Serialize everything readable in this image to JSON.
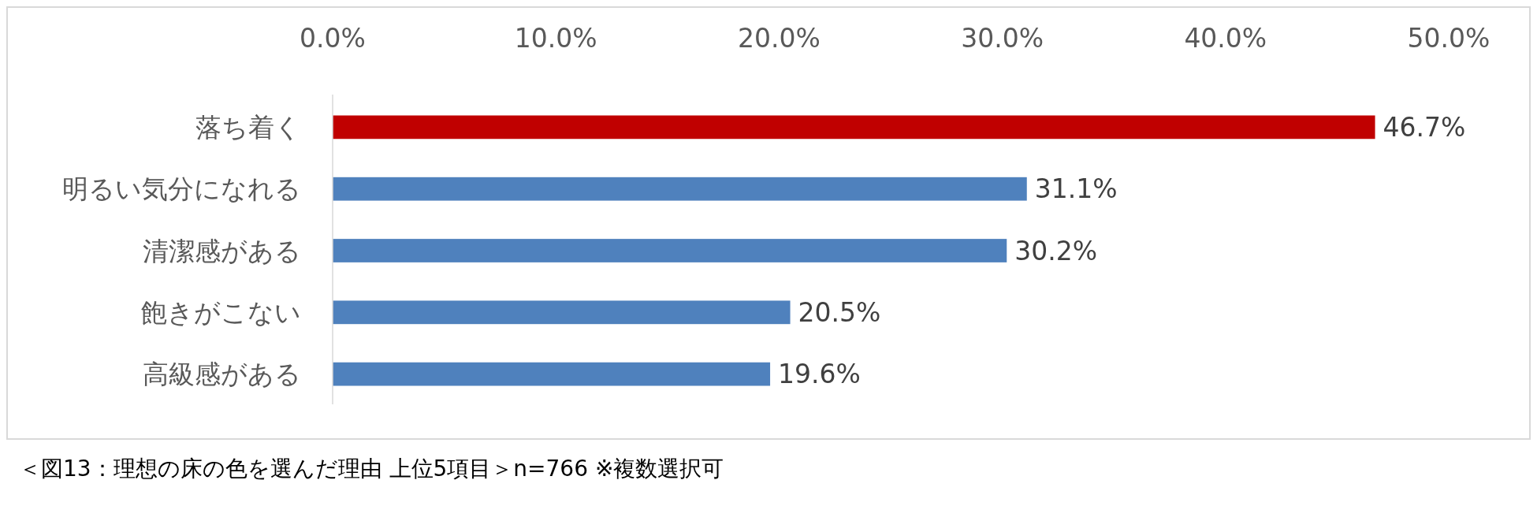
{
  "chart_data": {
    "type": "bar",
    "orientation": "horizontal",
    "categories": [
      "落ち着く",
      "明るい気分になれる",
      "清潔感がある",
      "飽きがこない",
      "高級感がある"
    ],
    "values": [
      46.7,
      31.1,
      30.2,
      20.5,
      19.6
    ],
    "colors": [
      "#c00000",
      "#4f81bd",
      "#4f81bd",
      "#4f81bd",
      "#4f81bd"
    ],
    "value_labels": [
      "46.7%",
      "31.1%",
      "30.2%",
      "20.5%",
      "19.6%"
    ],
    "xlim": [
      0,
      50
    ],
    "xticks": [
      {
        "value": 0,
        "label": "0.0%"
      },
      {
        "value": 10,
        "label": "10.0%"
      },
      {
        "value": 20,
        "label": "20.0%"
      },
      {
        "value": 30,
        "label": "30.0%"
      },
      {
        "value": 40,
        "label": "40.0%"
      },
      {
        "value": 50,
        "label": "50.0%"
      }
    ],
    "grid": false,
    "annotations": [
      "＜図13：理想の床の色を選んだ理由 上位5項目＞n=766 ※複数選択可"
    ]
  }
}
